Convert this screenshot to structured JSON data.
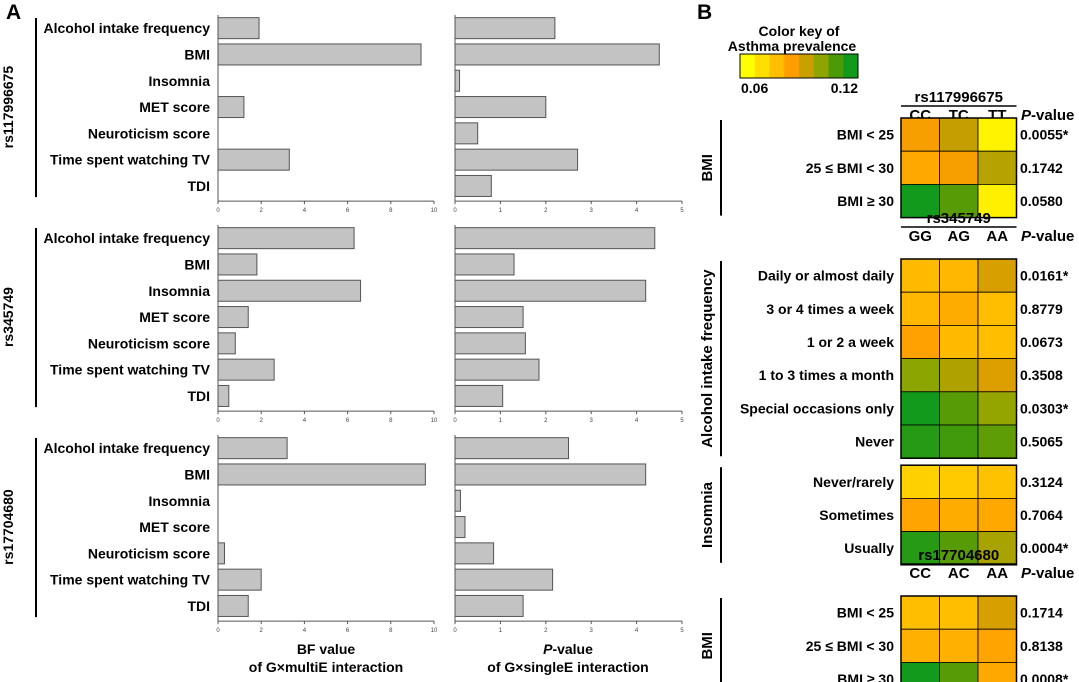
{
  "panels": {
    "a": "A",
    "b": "B"
  },
  "chart_data": [
    {
      "type": "bar",
      "orientation": "horizontal",
      "title": "",
      "categories": [
        "Alcohol intake frequency",
        "BMI",
        "Insomnia",
        "MET score",
        "Neuroticism score",
        "Time spent watching TV",
        "TDI"
      ],
      "snps": [
        "rs117996675",
        "rs345749",
        "rs17704680"
      ],
      "left": {
        "xlabel": [
          "BF value",
          "of G×multiE interaction"
        ],
        "xlim": [
          0,
          10
        ],
        "ticks": [
          "0",
          "2",
          "4",
          "6",
          "8",
          "10"
        ],
        "series": [
          {
            "name": "rs117996675",
            "values": [
              1.9,
              9.4,
              0.0,
              1.2,
              0.0,
              3.3,
              0.0
            ]
          },
          {
            "name": "rs345749",
            "values": [
              6.3,
              1.8,
              6.6,
              1.4,
              0.8,
              2.6,
              0.5
            ]
          },
          {
            "name": "rs17704680",
            "values": [
              3.2,
              9.6,
              0.0,
              0.0,
              0.3,
              2.0,
              1.4
            ]
          }
        ]
      },
      "right": {
        "xlabel": [
          "P-value",
          "of G×singleE interaction"
        ],
        "xlim": [
          0,
          5
        ],
        "ticks": [
          "0",
          "1",
          "2",
          "3",
          "4",
          "5"
        ],
        "series": [
          {
            "name": "rs117996675",
            "values": [
              2.2,
              4.5,
              0.1,
              2.0,
              0.5,
              2.7,
              0.8
            ]
          },
          {
            "name": "rs345749",
            "values": [
              4.4,
              1.3,
              4.2,
              1.5,
              1.55,
              1.85,
              1.05
            ]
          },
          {
            "name": "rs17704680",
            "values": [
              2.5,
              4.2,
              0.12,
              0.22,
              0.85,
              2.15,
              1.5
            ]
          }
        ]
      }
    },
    {
      "type": "heatmap",
      "color_key": {
        "title": [
          "Color key of",
          "Asthma prevalence"
        ],
        "min_label": "0.06",
        "max_label": "0.12",
        "range": [
          0.06,
          0.12
        ],
        "colors": [
          "#ffff00",
          "#ffde00",
          "#ffbe00",
          "#ff9e00",
          "#c8a000",
          "#8ea500",
          "#4c9a08",
          "#119a1c"
        ]
      },
      "pvalue_header": {
        "italic": "P",
        "rest": "-value"
      },
      "blocks": [
        {
          "snp": "rs117996675",
          "genotypes": [
            "CC",
            "TC",
            "TT"
          ],
          "groups": [
            {
              "label": "BMI",
              "rows": [
                {
                  "label": "BMI < 25",
                  "cells": [
                    0.087,
                    0.095,
                    0.063
                  ],
                  "p": "0.0055*"
                },
                {
                  "label": "25 ≤ BMI < 30",
                  "cells": [
                    0.083,
                    0.087,
                    0.097
                  ],
                  "p": "0.1742"
                },
                {
                  "label": "BMI ≥ 30",
                  "cells": [
                    0.12,
                    0.11,
                    0.064
                  ],
                  "p": "0.0580"
                }
              ]
            }
          ]
        },
        {
          "snp": "rs345749",
          "genotypes": [
            "GG",
            "AG",
            "AA"
          ],
          "groups": [
            {
              "label": "Alcohol intake frequency",
              "rows": [
                {
                  "label": "Daily or almost daily",
                  "cells": [
                    0.078,
                    0.079,
                    0.092
                  ],
                  "p": "0.0161*"
                },
                {
                  "label": "3 or 4 times a week",
                  "cells": [
                    0.079,
                    0.082,
                    0.077
                  ],
                  "p": "0.8779"
                },
                {
                  "label": "1 or 2 a week",
                  "cells": [
                    0.085,
                    0.078,
                    0.077
                  ],
                  "p": "0.0673"
                },
                {
                  "label": "1 to 3 times a month",
                  "cells": [
                    0.103,
                    0.098,
                    0.091
                  ],
                  "p": "0.3508"
                },
                {
                  "label": "Special occasions only",
                  "cells": [
                    0.12,
                    0.11,
                    0.102
                  ],
                  "p": "0.0303*"
                },
                {
                  "label": "Never",
                  "cells": [
                    0.117,
                    0.113,
                    0.109
                  ],
                  "p": "0.5065"
                }
              ]
            },
            {
              "label": "Insomnia",
              "rows": [
                {
                  "label": "Never/rarely",
                  "cells": [
                    0.072,
                    0.074,
                    0.076
                  ],
                  "p": "0.3124"
                },
                {
                  "label": "Sometimes",
                  "cells": [
                    0.084,
                    0.082,
                    0.083
                  ],
                  "p": "0.7064"
                },
                {
                  "label": "Usually",
                  "cells": [
                    0.117,
                    0.11,
                    0.099
                  ],
                  "p": "0.0004*"
                }
              ]
            }
          ]
        },
        {
          "snp": "rs17704680",
          "genotypes": [
            "CC",
            "AC",
            "AA"
          ],
          "groups": [
            {
              "label": "BMI",
              "rows": [
                {
                  "label": "BMI < 25",
                  "cells": [
                    0.077,
                    0.077,
                    0.092
                  ],
                  "p": "0.1714"
                },
                {
                  "label": "25 ≤ BMI < 30",
                  "cells": [
                    0.081,
                    0.081,
                    0.084
                  ],
                  "p": "0.8138"
                },
                {
                  "label": "BMI ≥ 30",
                  "cells": [
                    0.12,
                    0.11,
                    0.083
                  ],
                  "p": "0.0008*"
                }
              ]
            }
          ]
        }
      ]
    }
  ]
}
